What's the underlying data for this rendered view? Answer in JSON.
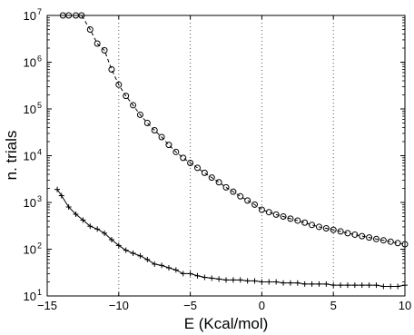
{
  "chart_data": {
    "type": "line",
    "xlabel": "E (Kcal/mol)",
    "ylabel": "n. trials",
    "xlim": [
      -15,
      10
    ],
    "ylim": [
      10,
      10000000
    ],
    "y_scale": "log",
    "x_ticks": [
      -15,
      -10,
      -5,
      0,
      5,
      10
    ],
    "x_tick_labels": [
      "−15",
      "−10",
      "−5",
      "0",
      "5",
      "10"
    ],
    "y_ticks": [
      10,
      100,
      1000,
      10000,
      100000,
      1000000,
      10000000
    ],
    "y_tick_labels": [
      {
        "base": "10",
        "exp": "1"
      },
      {
        "base": "10",
        "exp": "2"
      },
      {
        "base": "10",
        "exp": "3"
      },
      {
        "base": "10",
        "exp": "4"
      },
      {
        "base": "10",
        "exp": "5"
      },
      {
        "base": "10",
        "exp": "6"
      },
      {
        "base": "10",
        "exp": "7"
      }
    ],
    "grid": "vertical dotted lines at x ticks",
    "series": [
      {
        "marker": "circle",
        "line": "dashed",
        "color": "#000000",
        "x": [
          -13.9,
          -13.5,
          -13.0,
          -12.6,
          -12.0,
          -11.5,
          -11.0,
          -10.5,
          -10.0,
          -9.5,
          -9.0,
          -8.5,
          -8.0,
          -7.5,
          -7.0,
          -6.5,
          -6.0,
          -5.5,
          -5.0,
          -4.5,
          -4.0,
          -3.5,
          -3.0,
          -2.5,
          -2.0,
          -1.5,
          -1.0,
          -0.5,
          0.0,
          0.5,
          1.0,
          1.5,
          2.0,
          2.5,
          3.0,
          3.5,
          4.0,
          4.5,
          5.0,
          5.5,
          6.0,
          6.5,
          7.0,
          7.5,
          8.0,
          8.5,
          9.0,
          9.5,
          10.0
        ],
        "y": [
          10000000,
          10000000,
          10000000,
          10000000,
          5000000,
          2500000,
          1800000,
          700000,
          330000,
          190000,
          120000,
          75000,
          50000,
          35000,
          25000,
          17000,
          12000,
          9000,
          7000,
          5500,
          4300,
          3400,
          2700,
          2100,
          1700,
          1350,
          1100,
          900,
          700,
          620,
          550,
          500,
          450,
          410,
          370,
          330,
          300,
          280,
          260,
          240,
          220,
          205,
          190,
          178,
          165,
          155,
          145,
          135,
          128
        ]
      },
      {
        "marker": "plus",
        "line": "solid",
        "color": "#000000",
        "x": [
          -14.3,
          -14.0,
          -13.5,
          -13.0,
          -12.5,
          -12.0,
          -11.5,
          -11.0,
          -10.5,
          -10.0,
          -9.5,
          -9.0,
          -8.5,
          -8.0,
          -7.5,
          -7.0,
          -6.5,
          -6.0,
          -5.5,
          -5.0,
          -4.5,
          -4.0,
          -3.5,
          -3.0,
          -2.5,
          -2.0,
          -1.5,
          -1.0,
          -0.5,
          0.0,
          0.5,
          1.0,
          1.5,
          2.0,
          2.5,
          3.0,
          3.5,
          4.0,
          4.5,
          5.0,
          5.5,
          6.0,
          6.5,
          7.0,
          7.5,
          8.0,
          8.5,
          9.0,
          9.5,
          10.0
        ],
        "y": [
          1900,
          1400,
          800,
          560,
          420,
          310,
          270,
          220,
          160,
          120,
          95,
          82,
          72,
          60,
          48,
          45,
          40,
          36,
          30,
          30,
          27,
          25,
          24,
          23,
          22,
          22,
          22,
          21,
          21,
          20,
          20,
          20,
          19,
          19,
          19,
          18,
          18,
          18,
          18,
          17,
          17,
          17,
          17,
          17,
          17,
          17,
          16,
          16,
          16,
          17
        ]
      }
    ]
  }
}
